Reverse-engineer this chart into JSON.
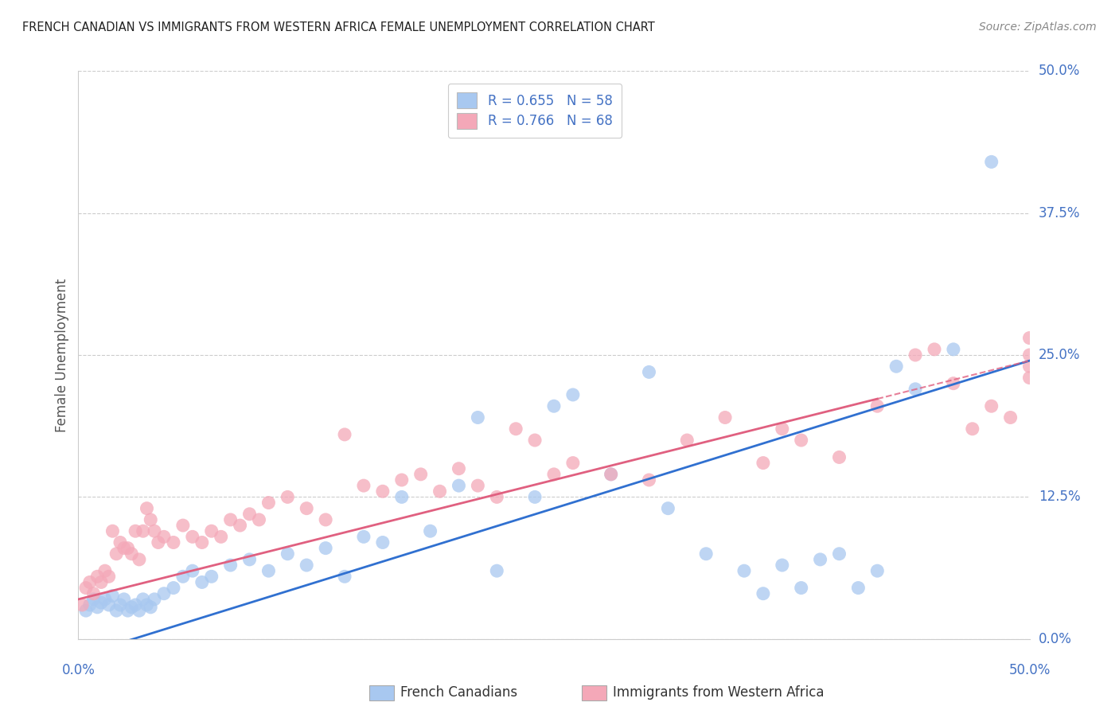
{
  "title": "FRENCH CANADIAN VS IMMIGRANTS FROM WESTERN AFRICA FEMALE UNEMPLOYMENT CORRELATION CHART",
  "source": "Source: ZipAtlas.com",
  "ylabel": "Female Unemployment",
  "ytick_labels": [
    "50.0%",
    "37.5%",
    "25.0%",
    "12.5%",
    "0.0%"
  ],
  "ytick_values": [
    50.0,
    37.5,
    25.0,
    12.5,
    0.0
  ],
  "xtick_labels": [
    "0.0%",
    "50.0%"
  ],
  "xlim": [
    0.0,
    50.0
  ],
  "ylim": [
    0.0,
    50.0
  ],
  "blue_R": 0.655,
  "blue_N": 58,
  "pink_R": 0.766,
  "pink_N": 68,
  "legend_label_blue": "French Canadians",
  "legend_label_pink": "Immigrants from Western Africa",
  "blue_color": "#A8C8F0",
  "pink_color": "#F4A8B8",
  "blue_line_color": "#3070D0",
  "pink_line_color": "#E06080",
  "background_color": "#FFFFFF",
  "grid_color": "#CCCCCC",
  "title_color": "#222222",
  "axis_label_color": "#4472C4",
  "blue_line_intercept": -1.5,
  "blue_line_slope": 0.52,
  "pink_line_intercept": 3.5,
  "pink_line_slope": 0.42,
  "blue_scatter_x": [
    0.4,
    0.6,
    0.8,
    1.0,
    1.2,
    1.4,
    1.6,
    1.8,
    2.0,
    2.2,
    2.4,
    2.6,
    2.8,
    3.0,
    3.2,
    3.4,
    3.6,
    3.8,
    4.0,
    4.5,
    5.0,
    5.5,
    6.0,
    6.5,
    7.0,
    8.0,
    9.0,
    10.0,
    11.0,
    12.0,
    13.0,
    14.0,
    15.0,
    16.0,
    17.0,
    18.5,
    20.0,
    21.0,
    22.0,
    24.0,
    25.0,
    26.0,
    28.0,
    30.0,
    31.0,
    33.0,
    35.0,
    36.0,
    37.0,
    38.0,
    39.0,
    40.0,
    41.0,
    42.0,
    43.0,
    44.0,
    46.0,
    48.0
  ],
  "blue_scatter_y": [
    2.5,
    3.0,
    3.5,
    2.8,
    3.2,
    3.5,
    3.0,
    3.8,
    2.5,
    3.0,
    3.5,
    2.5,
    2.8,
    3.0,
    2.5,
    3.5,
    3.0,
    2.8,
    3.5,
    4.0,
    4.5,
    5.5,
    6.0,
    5.0,
    5.5,
    6.5,
    7.0,
    6.0,
    7.5,
    6.5,
    8.0,
    5.5,
    9.0,
    8.5,
    12.5,
    9.5,
    13.5,
    19.5,
    6.0,
    12.5,
    20.5,
    21.5,
    14.5,
    23.5,
    11.5,
    7.5,
    6.0,
    4.0,
    6.5,
    4.5,
    7.0,
    7.5,
    4.5,
    6.0,
    24.0,
    22.0,
    25.5,
    42.0
  ],
  "pink_scatter_x": [
    0.2,
    0.4,
    0.6,
    0.8,
    1.0,
    1.2,
    1.4,
    1.6,
    1.8,
    2.0,
    2.2,
    2.4,
    2.6,
    2.8,
    3.0,
    3.2,
    3.4,
    3.6,
    3.8,
    4.0,
    4.2,
    4.5,
    5.0,
    5.5,
    6.0,
    6.5,
    7.0,
    7.5,
    8.0,
    8.5,
    9.0,
    9.5,
    10.0,
    11.0,
    12.0,
    13.0,
    14.0,
    15.0,
    16.0,
    17.0,
    18.0,
    19.0,
    20.0,
    21.0,
    22.0,
    23.0,
    24.0,
    25.0,
    26.0,
    28.0,
    30.0,
    32.0,
    34.0,
    36.0,
    37.0,
    38.0,
    40.0,
    42.0,
    44.0,
    45.0,
    46.0,
    47.0,
    48.0,
    49.0,
    50.0,
    50.0,
    50.0,
    50.0
  ],
  "pink_scatter_y": [
    3.0,
    4.5,
    5.0,
    4.0,
    5.5,
    5.0,
    6.0,
    5.5,
    9.5,
    7.5,
    8.5,
    8.0,
    8.0,
    7.5,
    9.5,
    7.0,
    9.5,
    11.5,
    10.5,
    9.5,
    8.5,
    9.0,
    8.5,
    10.0,
    9.0,
    8.5,
    9.5,
    9.0,
    10.5,
    10.0,
    11.0,
    10.5,
    12.0,
    12.5,
    11.5,
    10.5,
    18.0,
    13.5,
    13.0,
    14.0,
    14.5,
    13.0,
    15.0,
    13.5,
    12.5,
    18.5,
    17.5,
    14.5,
    15.5,
    14.5,
    14.0,
    17.5,
    19.5,
    15.5,
    18.5,
    17.5,
    16.0,
    20.5,
    25.0,
    25.5,
    22.5,
    18.5,
    20.5,
    19.5,
    25.0,
    26.5,
    24.0,
    23.0
  ]
}
